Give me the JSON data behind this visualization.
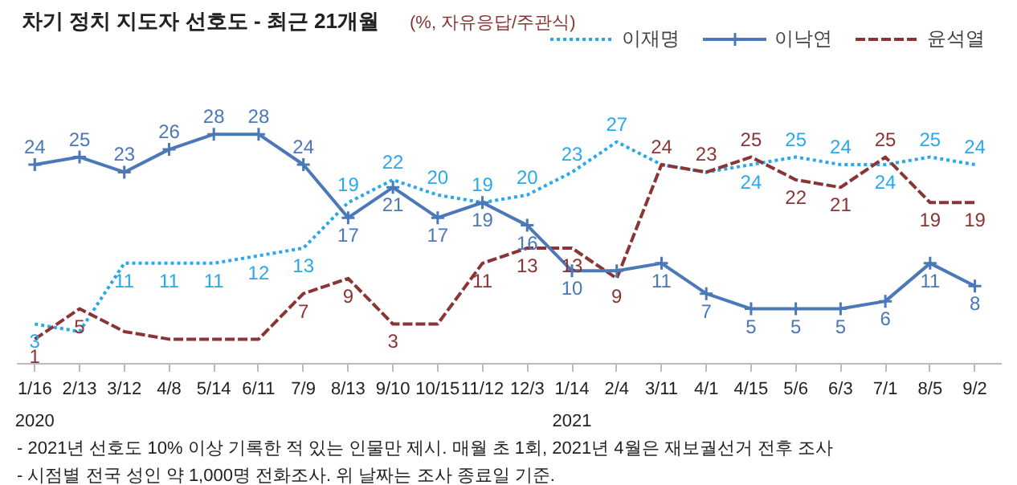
{
  "chart_data": {
    "type": "line",
    "title": "차기 정치 지도자 선호도 - 최근 21개월",
    "subtitle": "(%, 자유응답/주관식)",
    "categories": [
      "1/16",
      "2/13",
      "3/12",
      "4/8",
      "5/14",
      "6/11",
      "7/9",
      "8/13",
      "9/10",
      "10/15",
      "11/12",
      "12/3",
      "1/14",
      "2/4",
      "3/11",
      "4/1",
      "4/15",
      "5/6",
      "6/3",
      "7/1",
      "8/5",
      "9/2"
    ],
    "series": [
      {
        "name": "이재명",
        "color": "#2aa8ec",
        "line_style": "dotted",
        "marker": "none",
        "values": [
          3,
          2,
          11,
          11,
          11,
          12,
          13,
          19,
          22,
          20,
          19,
          20,
          23,
          27,
          24,
          23,
          24,
          25,
          24,
          24,
          25,
          24
        ],
        "value_labels": [
          "3",
          null,
          "11",
          "11",
          "11",
          "12",
          "13",
          "19",
          "22",
          "20",
          "19",
          "20",
          "23",
          "27",
          null,
          null,
          "24",
          "25",
          "24",
          "24",
          "25",
          "24"
        ]
      },
      {
        "name": "이낙연",
        "color": "#4a78b8",
        "line_style": "solid",
        "marker": "cross",
        "values": [
          24,
          25,
          23,
          26,
          28,
          28,
          24,
          17,
          21,
          17,
          19,
          16,
          10,
          10,
          11,
          7,
          5,
          5,
          5,
          6,
          11,
          8
        ],
        "value_labels": [
          "24",
          "25",
          "23",
          "26",
          "28",
          "28",
          "24",
          "17",
          "21",
          "17",
          "19",
          "16",
          "10",
          null,
          "11",
          "7",
          "5",
          "5",
          "5",
          "6",
          "11",
          "8"
        ]
      },
      {
        "name": "윤석열",
        "color": "#8b3434",
        "line_style": "dashed",
        "marker": "none",
        "values": [
          1,
          5,
          2,
          1,
          1,
          1,
          7,
          9,
          3,
          3,
          11,
          13,
          13,
          9,
          24,
          23,
          25,
          22,
          21,
          25,
          19,
          19
        ],
        "value_labels": [
          "1",
          "5",
          null,
          null,
          null,
          null,
          "7",
          "9",
          "3",
          null,
          "11",
          "13",
          "13",
          "9",
          "24",
          "23",
          "25",
          "22",
          "21",
          "25",
          "19",
          "19"
        ]
      }
    ],
    "legend": "top right",
    "grid": false,
    "annotations": [
      "2020",
      "2021",
      "- 2021년 선호도 10% 이상 기록한 적 있는 인물만 제시. 매월 초 1회, 2021년 4월은 재보궐선거 전후 조사",
      "- 시점별 전국 성인 약 1,000명 전화조사. 위 날짜는 조사 종료일 기준."
    ]
  }
}
